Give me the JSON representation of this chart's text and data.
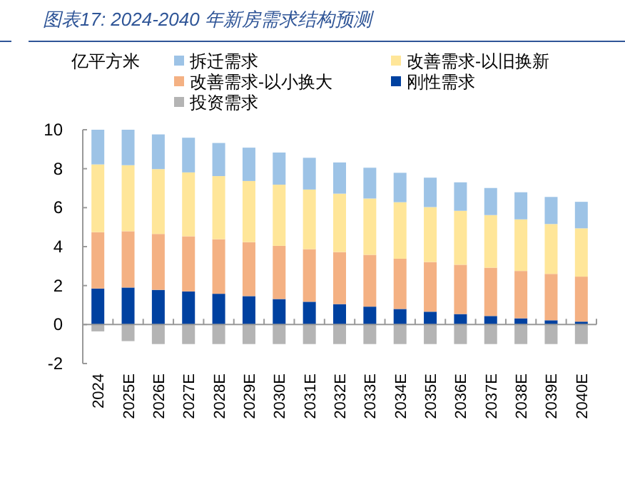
{
  "chart_data": {
    "type": "bar",
    "title": "图表17:  2024-2040 年新房需求结构预测",
    "ylabel": "亿平方米",
    "stacked": true,
    "legend": "top",
    "categories": [
      "2024",
      "2025E",
      "2026E",
      "2027E",
      "2028E",
      "2029E",
      "2030E",
      "2031E",
      "2032E",
      "2033E",
      "2034E",
      "2035E",
      "2036E",
      "2037E",
      "2038E",
      "2039E",
      "2040E"
    ],
    "ylim": [
      -2,
      10
    ],
    "yticks": [
      -2,
      0,
      2,
      4,
      6,
      8,
      10
    ],
    "series": [
      {
        "name": "投资需求",
        "color": "#b4b4b4",
        "values": [
          -0.35,
          -0.85,
          -1.0,
          -1.0,
          -1.0,
          -1.0,
          -1.0,
          -1.0,
          -1.0,
          -1.0,
          -1.0,
          -1.0,
          -1.0,
          -1.0,
          -1.0,
          -1.0,
          -1.0
        ]
      },
      {
        "name": "刚性需求",
        "color": "#0041a0",
        "values": [
          1.85,
          1.9,
          1.78,
          1.7,
          1.58,
          1.46,
          1.31,
          1.17,
          1.05,
          0.92,
          0.8,
          0.66,
          0.54,
          0.44,
          0.32,
          0.22,
          0.15
        ]
      },
      {
        "name": "改善需求-以小换大",
        "color": "#f4b183",
        "values": [
          2.89,
          2.89,
          2.87,
          2.83,
          2.8,
          2.77,
          2.73,
          2.7,
          2.67,
          2.66,
          2.58,
          2.55,
          2.53,
          2.48,
          2.43,
          2.38,
          2.31
        ]
      },
      {
        "name": "改善需求-以旧换新",
        "color": "#ffe699",
        "values": [
          3.48,
          3.39,
          3.33,
          3.28,
          3.24,
          3.14,
          3.14,
          3.06,
          3.0,
          2.89,
          2.9,
          2.82,
          2.77,
          2.7,
          2.65,
          2.56,
          2.48
        ]
      },
      {
        "name": "拆迁需求",
        "color": "#9dc3e6",
        "values": [
          1.78,
          1.82,
          1.78,
          1.78,
          1.7,
          1.71,
          1.65,
          1.63,
          1.6,
          1.58,
          1.51,
          1.51,
          1.46,
          1.39,
          1.39,
          1.39,
          1.36
        ]
      }
    ]
  }
}
